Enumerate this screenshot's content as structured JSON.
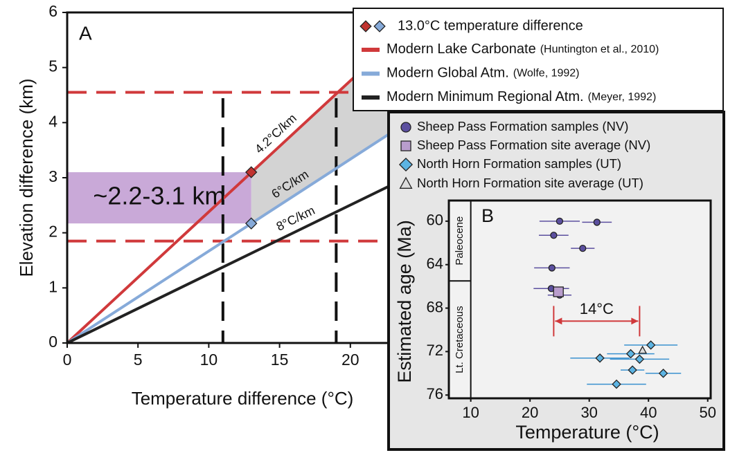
{
  "chart_data": [
    {
      "type": "line",
      "panel_label": "A",
      "xlabel": "Temperature difference (°C)",
      "ylabel": "Elevation difference (km)",
      "xlim": [
        0,
        25
      ],
      "ylim": [
        0,
        6
      ],
      "xticks": [
        0,
        5,
        10,
        15,
        20
      ],
      "yticks": [
        0,
        1,
        2,
        3,
        4,
        5,
        6
      ],
      "series": [
        {
          "name": "Modern Lake Carbonate",
          "citation": "(Huntington et al., 2010)",
          "line_label": "4.2°C/km",
          "color": "#d0393b",
          "x": [
            0,
            25
          ],
          "values": [
            0,
            5.95
          ]
        },
        {
          "name": "Modern Global Atm.",
          "citation": "(Wolfe, 1992)",
          "line_label": "6°C/km",
          "color": "#86aad9",
          "x": [
            0,
            25
          ],
          "values": [
            0,
            4.17
          ]
        },
        {
          "name": "Modern Minimum Regional Atm.",
          "citation": "(Meyer, 1992)",
          "line_label": "8°C/km",
          "color": "#222222",
          "x": [
            0,
            25
          ],
          "values": [
            0,
            3.13
          ]
        }
      ],
      "markers": {
        "name": "13.0°C temperature difference",
        "x": [
          13,
          13
        ],
        "values": [
          3.1,
          2.17
        ],
        "colors": [
          "#c0332f",
          "#86aad9"
        ]
      },
      "reference_lines": {
        "color_h": "#d0393b",
        "y": [
          4.55,
          1.85
        ],
        "color_v": "#111111",
        "x": [
          11,
          19
        ]
      },
      "range_box": {
        "label": "~2.2-3.1 km",
        "color": "#c9a9d8",
        "xlim": [
          0,
          13
        ],
        "ylim": [
          2.17,
          3.1
        ]
      },
      "shading": {
        "color": "#d3d3d3",
        "x": [
          13,
          25
        ]
      }
    },
    {
      "type": "scatter",
      "panel_label": "B",
      "xlabel": "Temperature (°C)",
      "ylabel": "Estimated age (Ma)",
      "xlim": [
        6.3,
        50.5
      ],
      "ylim": [
        58.1,
        76.3
      ],
      "y_inverted": true,
      "xticks": [
        10,
        20,
        30,
        40,
        50
      ],
      "yticks": [
        60,
        64,
        68,
        72,
        76
      ],
      "epochs": [
        {
          "name": "Paleocene",
          "ylim": [
            58.1,
            65.5
          ]
        },
        {
          "name": "Lt. Cretaceous",
          "ylim": [
            65.5,
            76.3
          ]
        }
      ],
      "series": [
        {
          "name": "Sheep Pass Formation samples (NV)",
          "marker": "circle",
          "color": "#5b4f9f",
          "err_color": "#5b4f9f",
          "x": [
            25.0,
            31.3,
            24.0,
            28.9,
            23.7,
            23.6,
            25.0
          ],
          "values": [
            60.0,
            60.1,
            61.3,
            62.5,
            64.3,
            66.2,
            66.8
          ],
          "xerr": [
            3.4,
            2.5,
            2.5,
            2,
            3,
            3,
            2
          ]
        },
        {
          "name": "Sheep Pass Formation site average (NV)",
          "marker": "square",
          "color": "#b99dcd",
          "x": [
            24.8
          ],
          "values": [
            66.5
          ]
        },
        {
          "name": "North Horn Formation samples (UT)",
          "marker": "diamond",
          "color": "#5cb4e3",
          "err_color": "#3a91cf",
          "x": [
            40.4,
            37.0,
            38.5,
            31.8,
            37.3,
            42.5,
            34.6
          ],
          "values": [
            71.4,
            72.2,
            72.7,
            72.6,
            73.7,
            74.0,
            75.0
          ],
          "xerr": [
            4.5,
            4,
            5,
            5,
            2,
            3,
            5
          ]
        },
        {
          "name": "North Horn Formation site average (UT)",
          "marker": "triangle",
          "color": "#dcdcdc",
          "x": [
            39.0
          ],
          "values": [
            71.9
          ]
        }
      ],
      "annotation": {
        "text": "14°C",
        "color": "#d0393b",
        "x": [
          24,
          38.5
        ],
        "y": 69.2
      }
    }
  ]
}
